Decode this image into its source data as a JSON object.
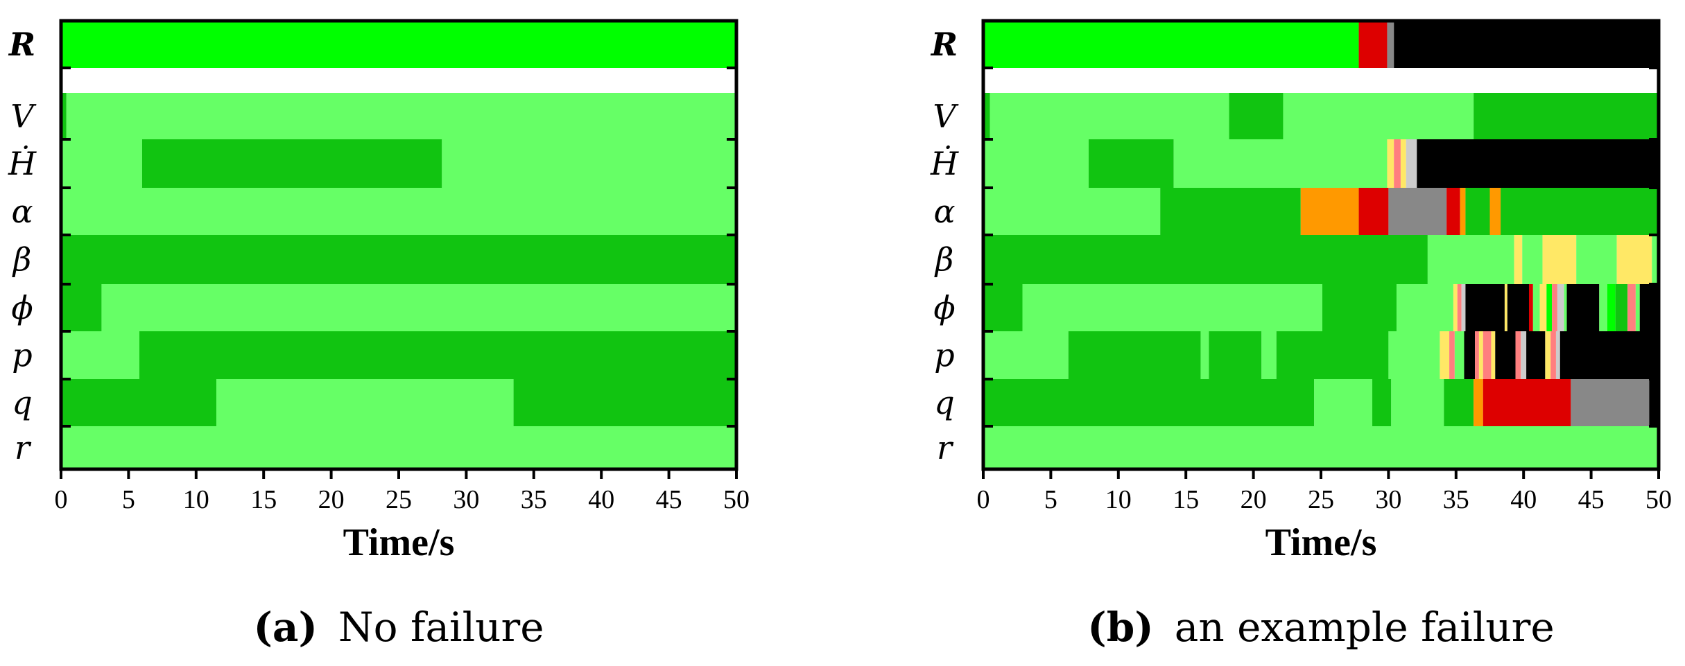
{
  "colors": {
    "level_0": "#00ff00",
    "level_1": "#66ff66",
    "level_2": "#11c411",
    "level_3": "#ffe866",
    "level_4": "#ff9900",
    "level_5": "#dd0000",
    "level_6": "#ff7f7f",
    "level_7": "#888888",
    "level_8": "#cccccc",
    "level_9": "#000000",
    "separator": "#ffffff"
  },
  "chart_data": [
    {
      "type": "heatmap",
      "caption_letter": "(a)",
      "caption_text": "No failure",
      "xlabel": "Time/s",
      "xlim": [
        0,
        50
      ],
      "x_ticks": [
        0,
        5,
        10,
        15,
        20,
        25,
        30,
        35,
        40,
        45,
        50
      ],
      "rows": [
        {
          "label": "R",
          "segments": [
            [
              0,
              50,
              "level_0"
            ]
          ]
        },
        {
          "label": "",
          "separator": true,
          "segments": [
            [
              0,
              50,
              "separator"
            ]
          ]
        },
        {
          "label": "V",
          "segments": [
            [
              0,
              0.4,
              "level_2"
            ],
            [
              0.4,
              50,
              "level_1"
            ]
          ]
        },
        {
          "label": "Ḣ",
          "segments": [
            [
              0,
              6,
              "level_1"
            ],
            [
              6,
              28.2,
              "level_2"
            ],
            [
              28.2,
              50,
              "level_1"
            ]
          ]
        },
        {
          "label": "α",
          "segments": [
            [
              0,
              50,
              "level_1"
            ]
          ]
        },
        {
          "label": "β",
          "segments": [
            [
              0,
              50,
              "level_2"
            ]
          ]
        },
        {
          "label": "ϕ",
          "segments": [
            [
              0,
              3,
              "level_2"
            ],
            [
              3,
              50,
              "level_1"
            ]
          ]
        },
        {
          "label": "p",
          "segments": [
            [
              0,
              5.8,
              "level_1"
            ],
            [
              5.8,
              50,
              "level_2"
            ]
          ]
        },
        {
          "label": "q",
          "segments": [
            [
              0,
              11.5,
              "level_2"
            ],
            [
              11.5,
              33.5,
              "level_1"
            ],
            [
              33.5,
              50,
              "level_2"
            ]
          ]
        },
        {
          "label": "r",
          "segments": [
            [
              0,
              50,
              "level_1"
            ]
          ]
        }
      ]
    },
    {
      "type": "heatmap",
      "caption_letter": "(b)",
      "caption_text": "an example failure",
      "xlabel": "Time/s",
      "xlim": [
        0,
        50
      ],
      "x_ticks": [
        0,
        5,
        10,
        15,
        20,
        25,
        30,
        35,
        40,
        45,
        50
      ],
      "rows": [
        {
          "label": "R",
          "segments": [
            [
              0,
              27.8,
              "level_0"
            ],
            [
              27.8,
              29.9,
              "level_5"
            ],
            [
              29.9,
              30.4,
              "level_7"
            ],
            [
              30.4,
              50,
              "level_9"
            ]
          ]
        },
        {
          "label": "",
          "separator": true,
          "segments": [
            [
              0,
              50,
              "separator"
            ]
          ]
        },
        {
          "label": "V",
          "segments": [
            [
              0,
              0.5,
              "level_2"
            ],
            [
              0.5,
              18.2,
              "level_1"
            ],
            [
              18.2,
              22.2,
              "level_2"
            ],
            [
              22.2,
              36.3,
              "level_1"
            ],
            [
              36.3,
              50,
              "level_2"
            ]
          ]
        },
        {
          "label": "Ḣ",
          "segments": [
            [
              0,
              7.8,
              "level_1"
            ],
            [
              7.8,
              14.1,
              "level_2"
            ],
            [
              14.1,
              29.9,
              "level_1"
            ],
            [
              29.9,
              30.4,
              "level_3"
            ],
            [
              30.4,
              30.9,
              "level_6"
            ],
            [
              30.9,
              31.3,
              "level_3"
            ],
            [
              31.3,
              32.1,
              "level_8"
            ],
            [
              32.1,
              50,
              "level_9"
            ]
          ]
        },
        {
          "label": "α",
          "segments": [
            [
              0,
              13.1,
              "level_1"
            ],
            [
              13.1,
              23.5,
              "level_2"
            ],
            [
              23.5,
              27.8,
              "level_4"
            ],
            [
              27.8,
              30.0,
              "level_5"
            ],
            [
              30.0,
              34.3,
              "level_7"
            ],
            [
              34.3,
              35.3,
              "level_5"
            ],
            [
              35.3,
              35.7,
              "level_4"
            ],
            [
              35.7,
              37.5,
              "level_2"
            ],
            [
              37.5,
              38.3,
              "level_4"
            ],
            [
              38.3,
              50,
              "level_2"
            ]
          ]
        },
        {
          "label": "β",
          "segments": [
            [
              0,
              32.9,
              "level_2"
            ],
            [
              32.9,
              39.3,
              "level_1"
            ],
            [
              39.3,
              39.9,
              "level_3"
            ],
            [
              39.9,
              41.4,
              "level_1"
            ],
            [
              41.4,
              43.9,
              "level_3"
            ],
            [
              43.9,
              46.9,
              "level_1"
            ],
            [
              46.9,
              49.5,
              "level_3"
            ],
            [
              49.5,
              50,
              "level_1"
            ]
          ]
        },
        {
          "label": "ϕ",
          "segments": [
            [
              0,
              2.9,
              "level_2"
            ],
            [
              2.9,
              25.1,
              "level_1"
            ],
            [
              25.1,
              30.6,
              "level_2"
            ],
            [
              30.6,
              34.8,
              "level_1"
            ],
            [
              34.8,
              35.1,
              "level_3"
            ],
            [
              35.1,
              35.4,
              "level_6"
            ],
            [
              35.4,
              35.7,
              "level_8"
            ],
            [
              35.7,
              38.6,
              "level_9"
            ],
            [
              38.6,
              38.8,
              "level_3"
            ],
            [
              38.8,
              40.4,
              "level_9"
            ],
            [
              40.4,
              40.7,
              "level_5"
            ],
            [
              40.7,
              41.2,
              "level_1"
            ],
            [
              41.2,
              41.7,
              "level_3"
            ],
            [
              41.7,
              42.1,
              "level_0"
            ],
            [
              42.1,
              42.5,
              "level_6"
            ],
            [
              42.5,
              43.0,
              "level_8"
            ],
            [
              43.0,
              43.2,
              "level_1"
            ],
            [
              43.2,
              45.6,
              "level_9"
            ],
            [
              45.6,
              46.2,
              "level_1"
            ],
            [
              46.2,
              46.8,
              "level_0"
            ],
            [
              46.8,
              47.7,
              "level_2"
            ],
            [
              47.7,
              48.3,
              "level_6"
            ],
            [
              48.3,
              48.6,
              "level_1"
            ],
            [
              48.6,
              50,
              "level_9"
            ]
          ]
        },
        {
          "label": "p",
          "segments": [
            [
              0,
              6.3,
              "level_1"
            ],
            [
              6.3,
              16.1,
              "level_2"
            ],
            [
              16.1,
              16.7,
              "level_1"
            ],
            [
              16.7,
              20.6,
              "level_2"
            ],
            [
              20.6,
              21.7,
              "level_1"
            ],
            [
              21.7,
              30.0,
              "level_2"
            ],
            [
              30.0,
              33.8,
              "level_1"
            ],
            [
              33.8,
              34.5,
              "level_3"
            ],
            [
              34.5,
              34.9,
              "level_6"
            ],
            [
              34.9,
              35.6,
              "level_1"
            ],
            [
              35.6,
              36.4,
              "level_9"
            ],
            [
              36.4,
              36.7,
              "level_6"
            ],
            [
              36.7,
              37.0,
              "level_3"
            ],
            [
              37.0,
              37.6,
              "level_6"
            ],
            [
              37.6,
              37.9,
              "level_3"
            ],
            [
              37.9,
              39.4,
              "level_9"
            ],
            [
              39.4,
              39.8,
              "level_6"
            ],
            [
              39.8,
              40.2,
              "level_8"
            ],
            [
              40.2,
              41.6,
              "level_9"
            ],
            [
              41.6,
              42.0,
              "level_3"
            ],
            [
              42.0,
              42.4,
              "level_6"
            ],
            [
              42.4,
              42.7,
              "level_8"
            ],
            [
              42.7,
              50,
              "level_9"
            ]
          ]
        },
        {
          "label": "q",
          "segments": [
            [
              0,
              24.5,
              "level_2"
            ],
            [
              24.5,
              28.8,
              "level_1"
            ],
            [
              28.8,
              30.2,
              "level_2"
            ],
            [
              30.2,
              34.1,
              "level_1"
            ],
            [
              34.1,
              36.3,
              "level_2"
            ],
            [
              36.3,
              37.0,
              "level_4"
            ],
            [
              37.0,
              43.5,
              "level_5"
            ],
            [
              43.5,
              49.3,
              "level_7"
            ],
            [
              49.3,
              50,
              "level_9"
            ]
          ]
        },
        {
          "label": "r",
          "segments": [
            [
              0,
              50,
              "level_1"
            ]
          ]
        }
      ]
    }
  ]
}
